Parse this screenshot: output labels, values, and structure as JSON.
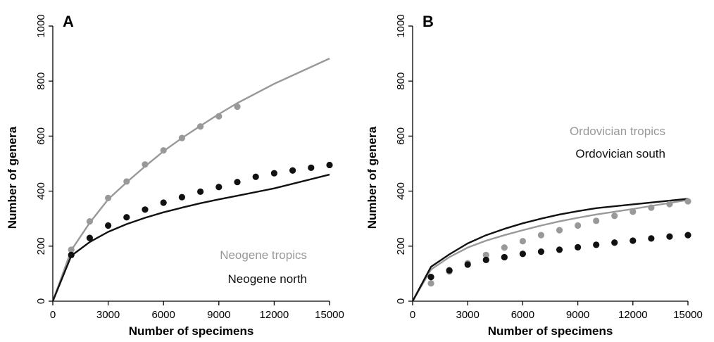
{
  "chart_data": [
    {
      "type": "line",
      "panel_label": "A",
      "xlabel": "Number of specimens",
      "ylabel": "Number of genera",
      "xlim": [
        0,
        15000
      ],
      "ylim": [
        0,
        1000
      ],
      "xticks": [
        "0",
        "3000",
        "6000",
        "9000",
        "12000",
        "15000"
      ],
      "yticks": [
        "0",
        "200",
        "400",
        "600",
        "800",
        "1000"
      ],
      "legend_placement": "bottom-right",
      "series": [
        {
          "name": "Neogene tropics",
          "color": "#999999",
          "line": {
            "x": [
              0,
              1000,
              2000,
              3000,
              4000,
              5000,
              6000,
              7000,
              8000,
              9000,
              10000,
              12000,
              15000
            ],
            "y": [
              0,
              185,
              285,
              370,
              432,
              490,
              545,
              593,
              637,
              680,
              720,
              790,
              882
            ]
          },
          "points": {
            "x": [
              1000,
              2000,
              3000,
              4000,
              5000,
              6000,
              7000,
              8000,
              9000,
              10000
            ],
            "y": [
              187,
              290,
              375,
              435,
              497,
              548,
              593,
              635,
              672,
              707
            ]
          }
        },
        {
          "name": "Neogene north",
          "color": "#111111",
          "line": {
            "x": [
              0,
              1000,
              2000,
              3000,
              4000,
              5000,
              6000,
              7000,
              8000,
              9000,
              10000,
              12000,
              15000
            ],
            "y": [
              0,
              165,
              215,
              252,
              280,
              303,
              323,
              340,
              356,
              370,
              383,
              410,
              460
            ]
          },
          "points": {
            "x": [
              1000,
              2000,
              3000,
              4000,
              5000,
              6000,
              7000,
              8000,
              9000,
              10000,
              11000,
              12000,
              13000,
              14000,
              15000
            ],
            "y": [
              168,
              230,
              275,
              305,
              333,
              358,
              378,
              398,
              415,
              433,
              452,
              465,
              475,
              485,
              495
            ]
          }
        }
      ]
    },
    {
      "type": "line",
      "panel_label": "B",
      "xlabel": "Number of specimens",
      "ylabel": "Number of genera",
      "xlim": [
        0,
        15000
      ],
      "ylim": [
        0,
        1000
      ],
      "xticks": [
        "0",
        "3000",
        "6000",
        "9000",
        "12000",
        "15000"
      ],
      "yticks": [
        "0",
        "200",
        "400",
        "600",
        "800",
        "1000"
      ],
      "legend_placement": "center-right",
      "series": [
        {
          "name": "Ordovician tropics",
          "color": "#999999",
          "line": {
            "x": [
              0,
              1000,
              2000,
              3000,
              4000,
              5000,
              6000,
              7000,
              8000,
              9000,
              10000,
              12000,
              15000
            ],
            "y": [
              0,
              115,
              160,
              195,
              220,
              240,
              258,
              275,
              290,
              303,
              315,
              335,
              368
            ]
          },
          "points": {
            "x": [
              1000,
              2000,
              3000,
              4000,
              5000,
              6000,
              7000,
              8000,
              9000,
              10000,
              11000,
              12000,
              13000,
              14000,
              15000
            ],
            "y": [
              65,
              108,
              138,
              168,
              195,
              218,
              240,
              258,
              275,
              292,
              310,
              325,
              340,
              353,
              363
            ]
          }
        },
        {
          "name": "Ordovician south",
          "color": "#111111",
          "line": {
            "x": [
              0,
              1000,
              2000,
              3000,
              4000,
              5000,
              6000,
              7000,
              8000,
              9000,
              10000,
              12000,
              15000
            ],
            "y": [
              0,
              125,
              170,
              210,
              240,
              263,
              283,
              300,
              315,
              327,
              338,
              352,
              372
            ]
          },
          "points": {
            "x": [
              1000,
              2000,
              3000,
              4000,
              5000,
              6000,
              7000,
              8000,
              9000,
              10000,
              11000,
              12000,
              13000,
              14000,
              15000
            ],
            "y": [
              88,
              112,
              133,
              150,
              160,
              172,
              180,
              187,
              196,
              205,
              213,
              220,
              228,
              235,
              240
            ]
          }
        }
      ]
    }
  ]
}
